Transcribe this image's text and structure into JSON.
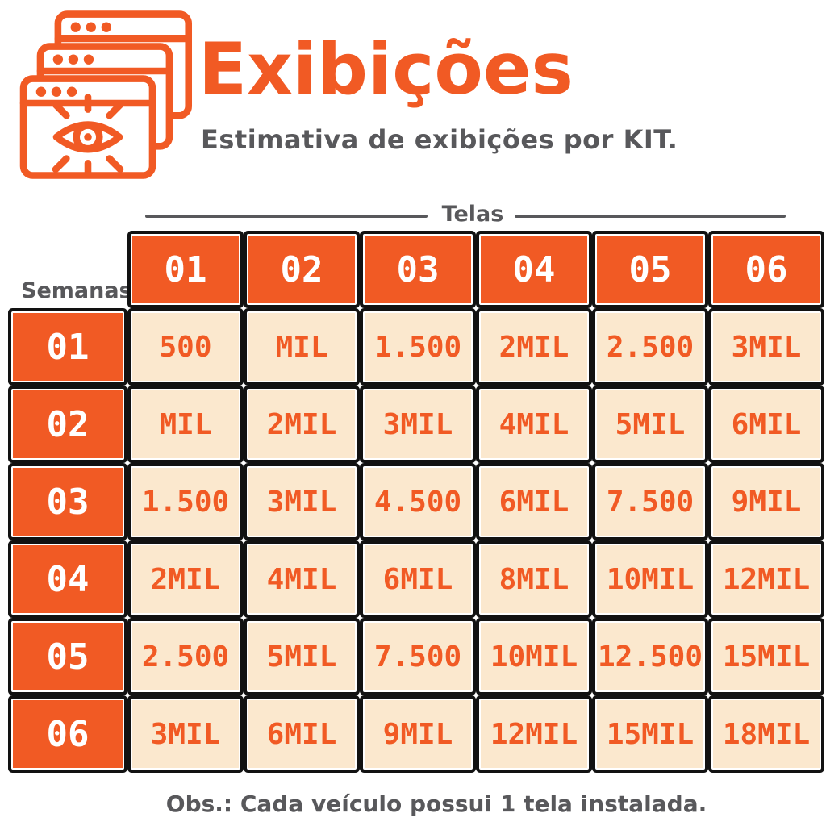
{
  "chart_data": {
    "type": "table",
    "title": "Exibições",
    "subtitle": "Estimativa de exibições por KIT.",
    "columns_axis": "Telas",
    "rows_axis": "Semanas",
    "columns": [
      "01",
      "02",
      "03",
      "04",
      "05",
      "06"
    ],
    "rows": [
      "01",
      "02",
      "03",
      "04",
      "05",
      "06"
    ],
    "values": [
      [
        "500",
        "MIL",
        "1.500",
        "2MIL",
        "2.500",
        "3MIL"
      ],
      [
        "MIL",
        "2MIL",
        "3MIL",
        "4MIL",
        "5MIL",
        "6MIL"
      ],
      [
        "1.500",
        "3MIL",
        "4.500",
        "6MIL",
        "7.500",
        "9MIL"
      ],
      [
        "2MIL",
        "4MIL",
        "6MIL",
        "8MIL",
        "10MIL",
        "12MIL"
      ],
      [
        "2.500",
        "5MIL",
        "7.500",
        "10MIL",
        "12.500",
        "15MIL"
      ],
      [
        "3MIL",
        "6MIL",
        "9MIL",
        "12MIL",
        "15MIL",
        "18MIL"
      ]
    ],
    "note": "Obs.: Cada veículo possui 1 tela instalada.",
    "layout": {
      "grid": "on",
      "header_row_position": "top",
      "header_column_position": "left"
    }
  },
  "icons": {
    "header": "browser-windows-eye"
  },
  "colors": {
    "orange": "#F15A24",
    "cream": "#FBE8CE",
    "text_gray": "#58585B",
    "grid_line": "#121212",
    "header_text": "#FFFFFF"
  }
}
